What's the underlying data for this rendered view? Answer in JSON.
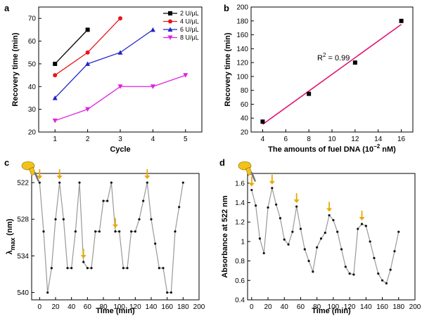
{
  "chart_data": [
    {
      "panel": "a",
      "type": "line",
      "xlabel": "Cycle",
      "ylabel": "Recovery time (min)",
      "xlim": [
        0.5,
        5.5
      ],
      "ylim": [
        20,
        75
      ],
      "xticks": [
        1,
        2,
        3,
        4,
        5
      ],
      "yticks": [
        20,
        30,
        40,
        50,
        60,
        70
      ],
      "legend_position": "top-right",
      "series": [
        {
          "name": "2 U/μL",
          "color": "#000000",
          "marker": "square",
          "x": [
            1,
            2
          ],
          "y": [
            50,
            65
          ]
        },
        {
          "name": "4 U/μL",
          "color": "#e8141b",
          "marker": "circle",
          "x": [
            1,
            2,
            3
          ],
          "y": [
            45,
            55,
            70
          ]
        },
        {
          "name": "6 U/μL",
          "color": "#1f23c8",
          "marker": "triangle-up",
          "x": [
            1,
            2,
            3,
            4
          ],
          "y": [
            35,
            50,
            55,
            65
          ]
        },
        {
          "name": "8 U/μL",
          "color": "#e020e0",
          "marker": "triangle-down",
          "x": [
            1,
            2,
            3,
            4,
            5
          ],
          "y": [
            25,
            30,
            40,
            40,
            45
          ]
        }
      ]
    },
    {
      "panel": "b",
      "type": "scatter",
      "xlabel_main": "The amounts of fuel DNA (10",
      "xlabel_sup": "−2",
      "xlabel_tail": " nM)",
      "ylabel": "Recovery time (min)",
      "xlim": [
        3,
        17
      ],
      "ylim": [
        20,
        200
      ],
      "xticks": [
        4,
        6,
        8,
        10,
        12,
        14,
        16
      ],
      "yticks": [
        20,
        40,
        60,
        80,
        100,
        120,
        140,
        160,
        180,
        200
      ],
      "points": {
        "x": [
          4,
          8,
          12,
          16
        ],
        "y": [
          35,
          75,
          120,
          180
        ]
      },
      "fit": {
        "x": [
          4,
          16
        ],
        "y": [
          31,
          175
        ],
        "color": "#e0136f"
      },
      "annotation_main": "R",
      "annotation_sup": "2",
      "annotation_tail": " = 0.99"
    },
    {
      "panel": "c",
      "type": "line",
      "xlabel": "Time (min)",
      "ylabel_main": "λ",
      "ylabel_sub": "max",
      "ylabel_tail": " (nm)",
      "xlim": [
        -10,
        200
      ],
      "ylim": [
        541.2,
        520.5
      ],
      "y_inverted": true,
      "xticks": [
        0,
        20,
        40,
        60,
        80,
        100,
        120,
        140,
        160,
        180,
        200
      ],
      "yticks": [
        522,
        528,
        534,
        540
      ],
      "line_color": "#999999",
      "x": [
        0,
        5,
        10,
        15,
        20,
        25,
        30,
        35,
        40,
        45,
        50,
        55,
        60,
        65,
        70,
        75,
        80,
        85,
        90,
        95,
        100,
        105,
        110,
        115,
        120,
        125,
        130,
        135,
        140,
        145,
        150,
        155,
        160,
        165,
        170,
        175,
        180
      ],
      "y": [
        522,
        530,
        540,
        536,
        528,
        522,
        528,
        536,
        536,
        530,
        522,
        535,
        536,
        536,
        530,
        530,
        525,
        525,
        522,
        530,
        530,
        536,
        536,
        530,
        530,
        528,
        525,
        522,
        528,
        532,
        536,
        536,
        540,
        540,
        530,
        526,
        522
      ],
      "fuel_addition_times": [
        0,
        25,
        55,
        95,
        135
      ]
    },
    {
      "panel": "d",
      "type": "line",
      "xlabel": "Time (min)",
      "ylabel": "Absorbance at 522 nm",
      "xlim": [
        -5,
        200
      ],
      "ylim": [
        0.4,
        1.7
      ],
      "xticks": [
        0,
        20,
        40,
        60,
        80,
        100,
        120,
        140,
        160,
        180,
        200
      ],
      "yticks": [
        0.4,
        0.6,
        0.8,
        1.0,
        1.2,
        1.4,
        1.6
      ],
      "line_color": "#999999",
      "x": [
        0,
        5,
        10,
        15,
        20,
        25,
        30,
        35,
        40,
        45,
        50,
        55,
        60,
        65,
        70,
        75,
        80,
        85,
        90,
        95,
        100,
        105,
        110,
        115,
        120,
        125,
        130,
        135,
        140,
        145,
        150,
        155,
        160,
        165,
        170,
        175,
        180
      ],
      "y": [
        1.53,
        1.37,
        1.03,
        0.88,
        1.35,
        1.55,
        1.38,
        1.24,
        1.02,
        0.97,
        1.1,
        1.36,
        1.13,
        0.92,
        0.8,
        0.69,
        0.94,
        1.03,
        1.09,
        1.27,
        1.22,
        1.1,
        0.92,
        0.74,
        0.67,
        0.66,
        1.13,
        1.18,
        1.16,
        1.0,
        0.83,
        0.67,
        0.6,
        0.57,
        0.71,
        0.9,
        1.1
      ],
      "fuel_addition_times": [
        0,
        25,
        55,
        95,
        135
      ]
    }
  ],
  "colors": {
    "marker": "#111111",
    "arrow": "#e8a900",
    "pipette_body": "#f2c21a",
    "pipette_tip": "#777777"
  },
  "icon": "pipette-icon"
}
